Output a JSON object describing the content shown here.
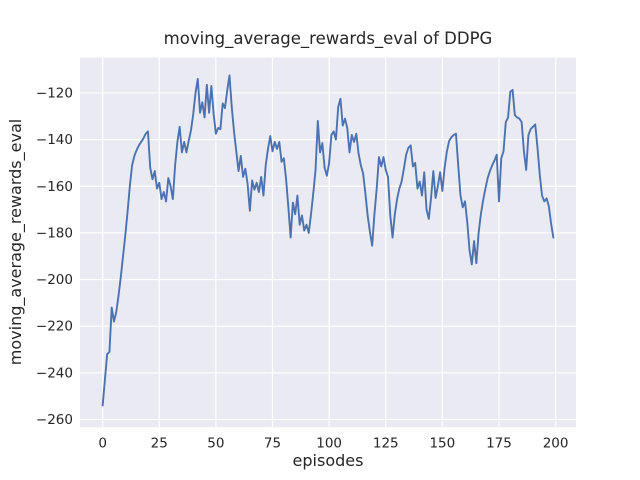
{
  "chart_data": {
    "type": "line",
    "title": "moving_average_rewards_eval of DDPG",
    "xlabel": "episodes",
    "ylabel": "moving_average_rewards_eval",
    "legend": "none",
    "grid": true,
    "x_start": 0,
    "x_step": 1,
    "xlim": [
      -10,
      209
    ],
    "ylim": [
      -263.3,
      -104.8
    ],
    "xticks": [
      0,
      25,
      50,
      75,
      100,
      125,
      150,
      175,
      200
    ],
    "yticks": [
      -260,
      -240,
      -220,
      -200,
      -180,
      -160,
      -140,
      -120
    ],
    "series": [
      {
        "name": "moving_average_rewards_eval",
        "values": [
          -254,
          -243,
          -232,
          -231,
          -212,
          -218,
          -214,
          -207,
          -199,
          -190,
          -181,
          -171,
          -160,
          -151,
          -147,
          -144.5,
          -142.5,
          -141,
          -139.5,
          -137.5,
          -136.5,
          -152,
          -157,
          -153.5,
          -161,
          -158.5,
          -165.5,
          -162.5,
          -166.5,
          -156.5,
          -160,
          -165.5,
          -151,
          -141,
          -134.5,
          -145.5,
          -141,
          -145.5,
          -140.5,
          -136,
          -129,
          -120,
          -114,
          -128.5,
          -124,
          -130.5,
          -116.5,
          -128.5,
          -117,
          -129,
          -137.5,
          -135,
          -135.5,
          -124.5,
          -126.5,
          -119,
          -112.5,
          -126,
          -136.5,
          -145,
          -153.5,
          -147,
          -156,
          -152.5,
          -159,
          -170.5,
          -157.5,
          -161.5,
          -158.5,
          -162.5,
          -156,
          -164,
          -151,
          -144,
          -138.5,
          -145,
          -141,
          -144,
          -141,
          -149.5,
          -148,
          -157,
          -169,
          -182,
          -167,
          -172,
          -164,
          -176.5,
          -172.5,
          -179,
          -176.5,
          -180,
          -172,
          -163,
          -153,
          -132,
          -145.5,
          -141.5,
          -152,
          -155.5,
          -150,
          -138,
          -136.5,
          -140,
          -126,
          -122.5,
          -134,
          -131,
          -135,
          -145.5,
          -138,
          -141,
          -137.5,
          -146,
          -151,
          -154.5,
          -163,
          -172.5,
          -179.5,
          -185.5,
          -172,
          -161,
          -147.5,
          -151.5,
          -147.5,
          -153,
          -156,
          -172.5,
          -182,
          -172,
          -165.5,
          -161,
          -158,
          -152.5,
          -146.5,
          -143.5,
          -142.5,
          -151.5,
          -150,
          -161,
          -158,
          -164,
          -154,
          -170,
          -174,
          -165,
          -153.5,
          -165,
          -160,
          -154,
          -162,
          -152,
          -145,
          -140.5,
          -139,
          -138,
          -137.5,
          -151,
          -164,
          -169,
          -166.5,
          -175.5,
          -187.5,
          -193.5,
          -183.5,
          -193,
          -180,
          -172,
          -166,
          -161,
          -156.5,
          -153.5,
          -151,
          -149,
          -146.5,
          -166.5,
          -148,
          -145,
          -132.5,
          -130.5,
          -119.5,
          -118.7,
          -129.5,
          -130.5,
          -131,
          -132.5,
          -145,
          -153,
          -138,
          -135.5,
          -134.5,
          -133.5,
          -143.5,
          -155,
          -164,
          -166.5,
          -165.2,
          -168.5,
          -176,
          -182
        ]
      }
    ],
    "colors": {
      "line": "#4c72b0",
      "plot_background": "#eaeaf2",
      "grid": "#ffffff",
      "text": "#262626",
      "figure_background": "#ffffff"
    }
  }
}
